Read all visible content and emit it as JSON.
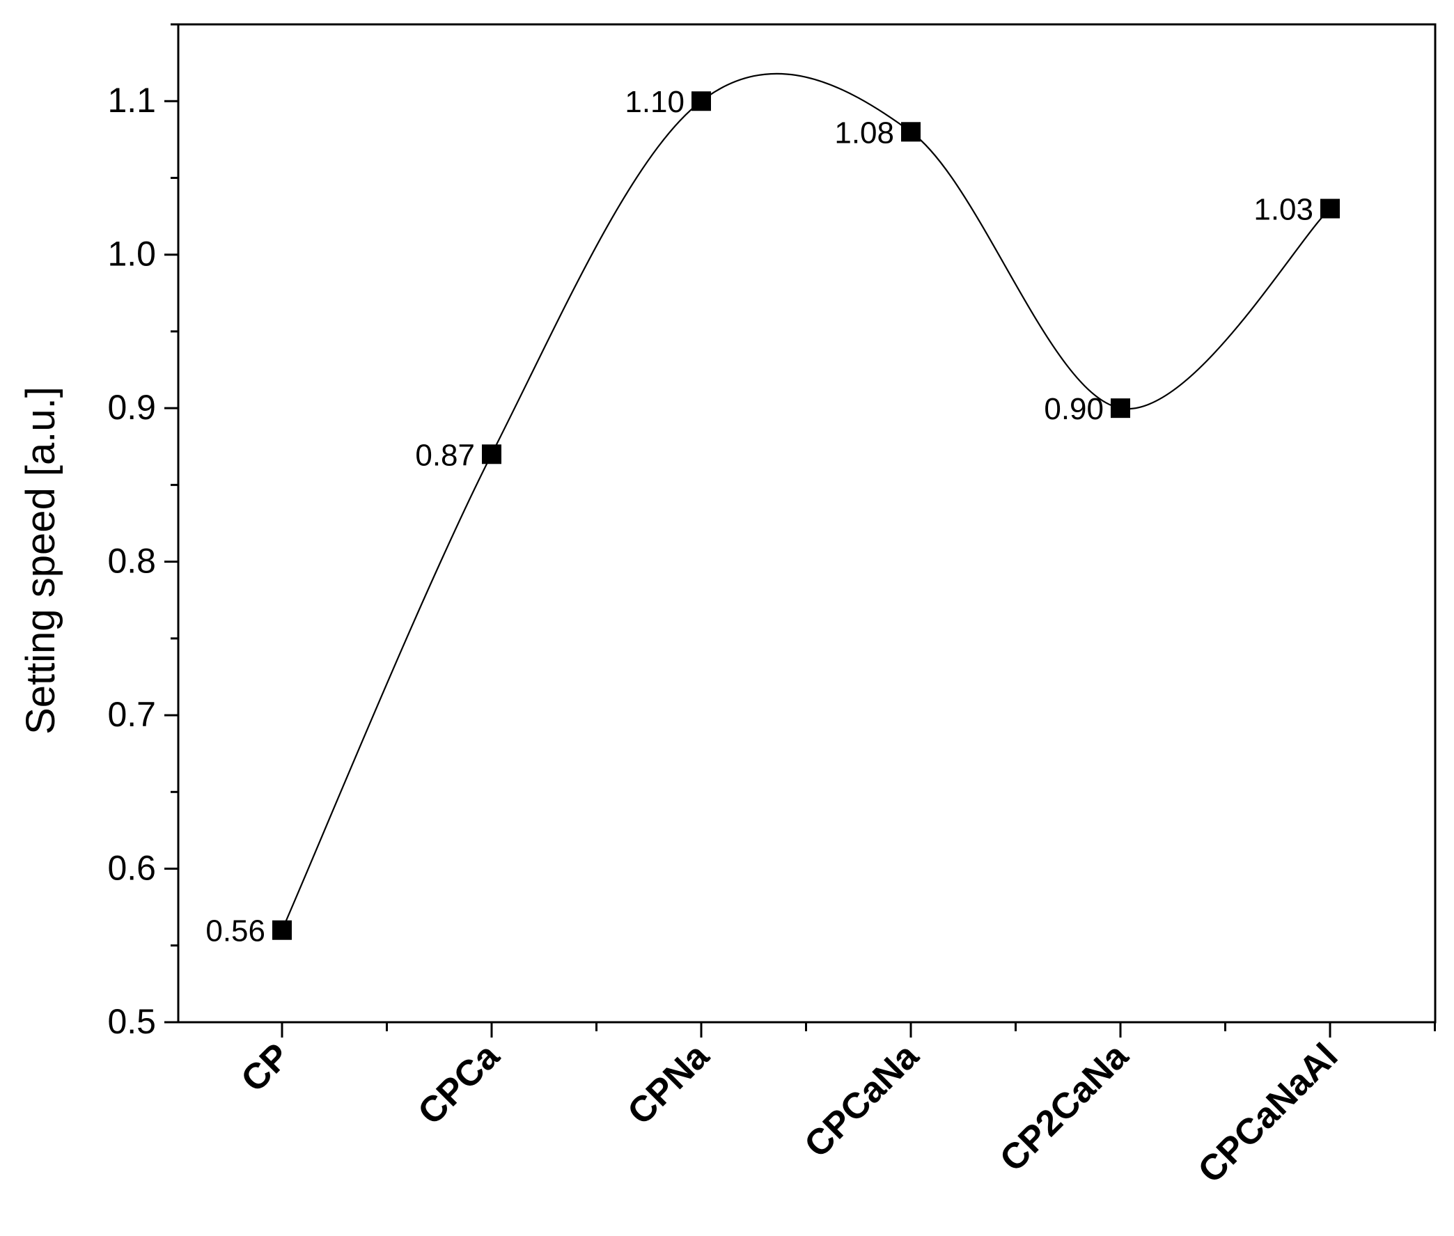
{
  "chart_data": {
    "type": "line",
    "title": "",
    "xlabel": "",
    "ylabel": "Setting speed [a.u.]",
    "categories": [
      "CP",
      "CPCa",
      "CPNa",
      "CPCaNa",
      "CP2CaNa",
      "CPCaNaAl"
    ],
    "series": [
      {
        "values": [
          0.56,
          0.87,
          1.1,
          1.08,
          0.9,
          1.03
        ],
        "data_labels": [
          "0.56",
          "0.87",
          "1.10",
          "1.08",
          "0.90",
          "1.03"
        ],
        "marker": "square",
        "color": "#000000",
        "smooth": true
      }
    ],
    "ylim": [
      0.5,
      1.15
    ],
    "y_major_ticks": [
      0.5,
      0.6,
      0.7,
      0.8,
      0.9,
      1.0,
      1.1
    ],
    "y_tick_labels": [
      "0.5",
      "0.6",
      "0.7",
      "0.8",
      "0.9",
      "1.0",
      "1.1"
    ],
    "y_minor_step": 0.05,
    "x_tick_label_rotation": -45,
    "x_tick_label_weight": "bold",
    "grid": false,
    "legend": "none",
    "frame": "box"
  }
}
